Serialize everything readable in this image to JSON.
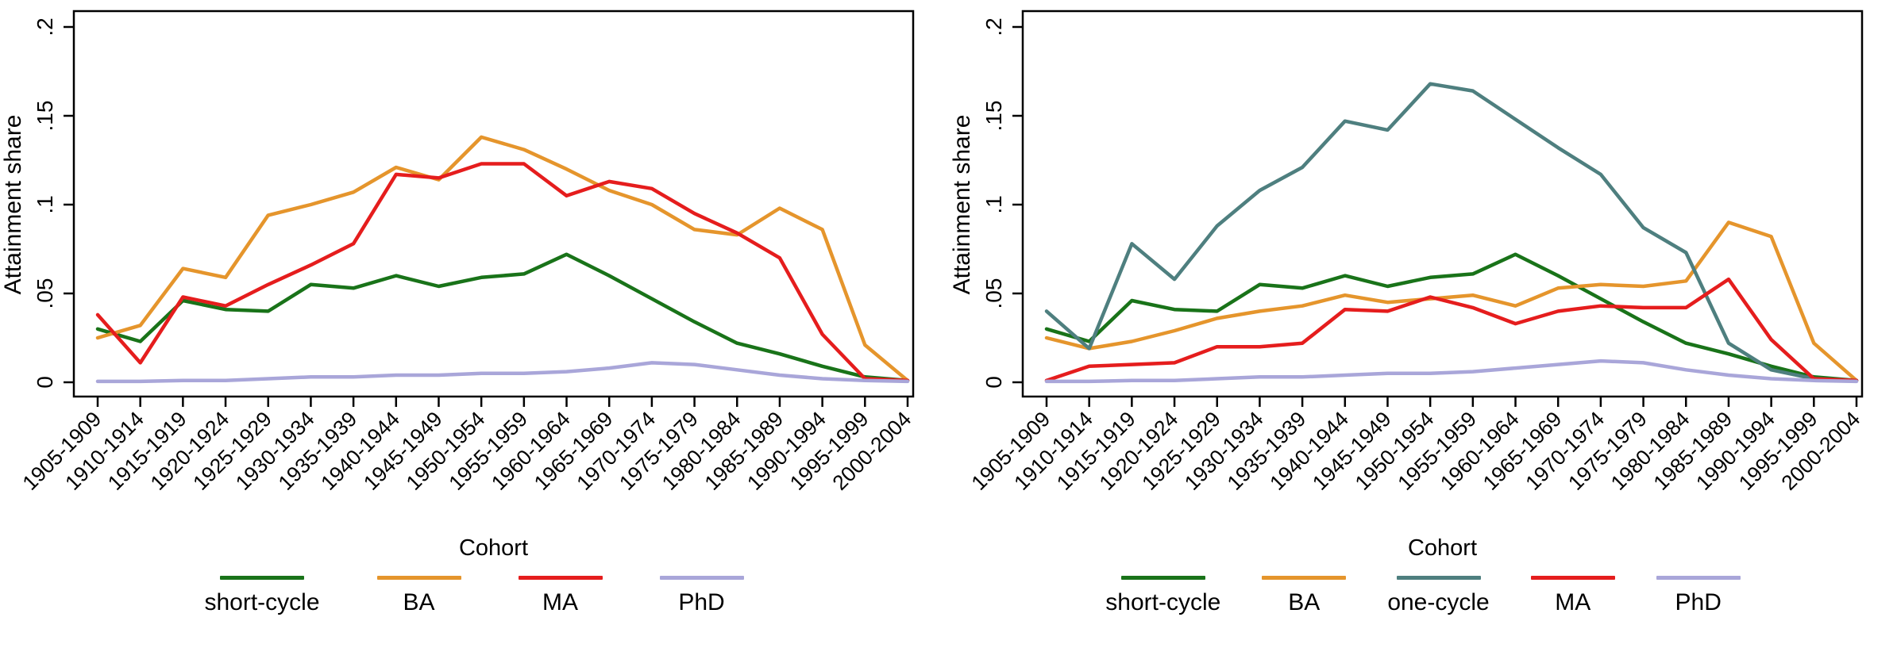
{
  "figure": {
    "background": "#ffffff",
    "description": "Two line charts of attainment share by birth cohort"
  },
  "colors": {
    "short_cycle": "#197319",
    "ba": "#e5952c",
    "one_cycle": "#4e7f7f",
    "ma": "#e51d1d",
    "phd": "#a9a6d9",
    "axis": "#000000",
    "text": "#000000"
  },
  "chart_data": [
    {
      "type": "line",
      "panel": "left",
      "title": "",
      "xlabel": "Cohort",
      "ylabel": "Attainment share",
      "ylim": [
        0,
        0.2
      ],
      "ytick_values": [
        0,
        0.05,
        0.1,
        0.15,
        0.2
      ],
      "ytick_labels": [
        "0",
        ".05",
        ".1",
        ".15",
        ".2"
      ],
      "grid": false,
      "legend_position": "bottom",
      "categories": [
        "1905-1909",
        "1910-1914",
        "1915-1919",
        "1920-1924",
        "1925-1929",
        "1930-1934",
        "1935-1939",
        "1940-1944",
        "1945-1949",
        "1950-1954",
        "1955-1959",
        "1960-1964",
        "1965-1969",
        "1970-1974",
        "1975-1979",
        "1980-1984",
        "1985-1989",
        "1990-1994",
        "1995-1999",
        "2000-2004"
      ],
      "series": [
        {
          "name": "short-cycle",
          "color_key": "short_cycle",
          "values": [
            0.03,
            0.023,
            0.046,
            0.041,
            0.04,
            0.055,
            0.053,
            0.06,
            0.054,
            0.059,
            0.061,
            0.072,
            0.06,
            0.047,
            0.034,
            0.022,
            0.016,
            0.009,
            0.003,
            0.001
          ]
        },
        {
          "name": "BA",
          "color_key": "ba",
          "values": [
            0.025,
            0.032,
            0.064,
            0.059,
            0.094,
            0.1,
            0.107,
            0.121,
            0.114,
            0.138,
            0.131,
            0.12,
            0.108,
            0.1,
            0.086,
            0.083,
            0.098,
            0.086,
            0.021,
            0.001
          ]
        },
        {
          "name": "MA",
          "color_key": "ma",
          "values": [
            0.038,
            0.011,
            0.048,
            0.043,
            0.055,
            0.066,
            0.078,
            0.117,
            0.115,
            0.123,
            0.123,
            0.105,
            0.113,
            0.109,
            0.095,
            0.084,
            0.07,
            0.027,
            0.002,
            0.001
          ]
        },
        {
          "name": "PhD",
          "color_key": "phd",
          "values": [
            0.0005,
            0.0005,
            0.001,
            0.001,
            0.002,
            0.003,
            0.003,
            0.004,
            0.004,
            0.005,
            0.005,
            0.006,
            0.008,
            0.011,
            0.01,
            0.007,
            0.004,
            0.002,
            0.001,
            0.0005
          ]
        }
      ]
    },
    {
      "type": "line",
      "panel": "right",
      "title": "",
      "xlabel": "Cohort",
      "ylabel": "Attainment share",
      "ylim": [
        0,
        0.2
      ],
      "ytick_values": [
        0,
        0.05,
        0.1,
        0.15,
        0.2
      ],
      "ytick_labels": [
        "0",
        ".05",
        ".1",
        ".15",
        ".2"
      ],
      "grid": false,
      "legend_position": "bottom",
      "categories": [
        "1905-1909",
        "1910-1914",
        "1915-1919",
        "1920-1924",
        "1925-1929",
        "1930-1934",
        "1935-1939",
        "1940-1944",
        "1945-1949",
        "1950-1954",
        "1955-1959",
        "1960-1964",
        "1965-1969",
        "1970-1974",
        "1975-1979",
        "1980-1984",
        "1985-1989",
        "1990-1994",
        "1995-1999",
        "2000-2004"
      ],
      "series": [
        {
          "name": "short-cycle",
          "color_key": "short_cycle",
          "values": [
            0.03,
            0.023,
            0.046,
            0.041,
            0.04,
            0.055,
            0.053,
            0.06,
            0.054,
            0.059,
            0.061,
            0.072,
            0.06,
            0.047,
            0.034,
            0.022,
            0.016,
            0.009,
            0.003,
            0.001
          ]
        },
        {
          "name": "BA",
          "color_key": "ba",
          "values": [
            0.025,
            0.019,
            0.023,
            0.029,
            0.036,
            0.04,
            0.043,
            0.049,
            0.045,
            0.047,
            0.049,
            0.043,
            0.053,
            0.055,
            0.054,
            0.057,
            0.09,
            0.082,
            0.022,
            0.001
          ]
        },
        {
          "name": "one-cycle",
          "color_key": "one_cycle",
          "values": [
            0.04,
            0.019,
            0.078,
            0.058,
            0.088,
            0.108,
            0.121,
            0.147,
            0.142,
            0.168,
            0.164,
            0.148,
            0.132,
            0.117,
            0.087,
            0.073,
            0.022,
            0.007,
            0.002,
            0.001
          ]
        },
        {
          "name": "MA",
          "color_key": "ma",
          "values": [
            0.001,
            0.009,
            0.01,
            0.011,
            0.02,
            0.02,
            0.022,
            0.041,
            0.04,
            0.048,
            0.042,
            0.033,
            0.04,
            0.043,
            0.042,
            0.042,
            0.058,
            0.024,
            0.002,
            0.001
          ]
        },
        {
          "name": "PhD",
          "color_key": "phd",
          "values": [
            0.0005,
            0.0005,
            0.001,
            0.001,
            0.002,
            0.003,
            0.003,
            0.004,
            0.005,
            0.005,
            0.006,
            0.008,
            0.01,
            0.012,
            0.011,
            0.007,
            0.004,
            0.002,
            0.001,
            0.0005
          ]
        }
      ]
    }
  ]
}
